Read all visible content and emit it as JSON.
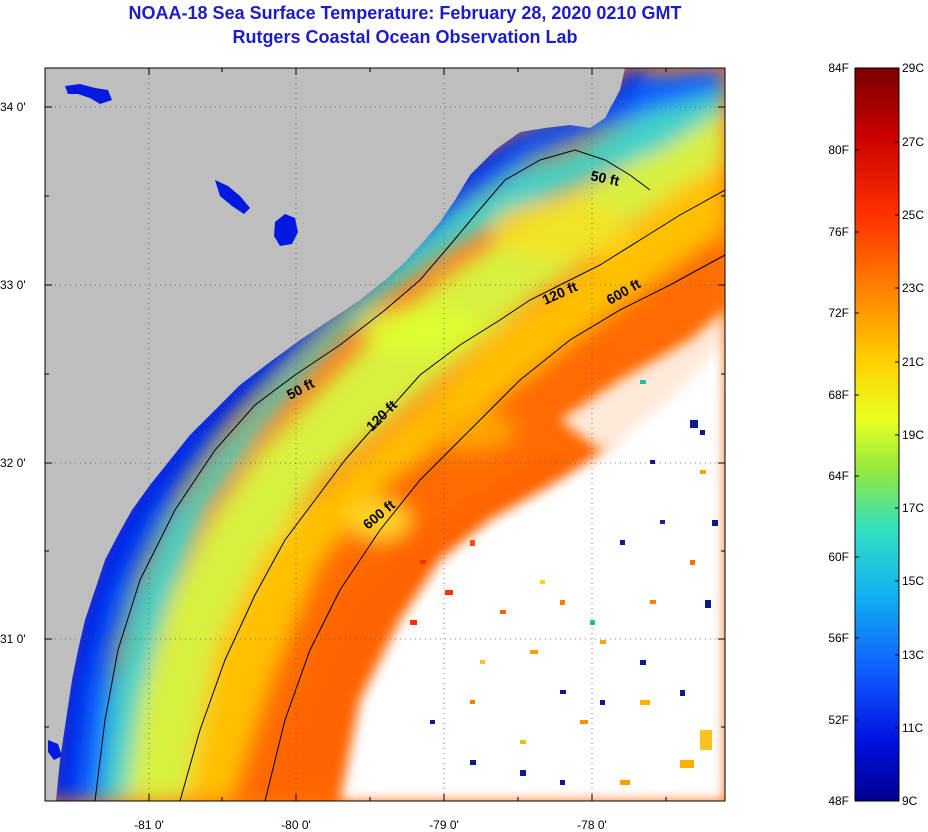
{
  "title": {
    "line1": "NOAA-18 Sea Surface Temperature:  February 28, 2020 0210 GMT",
    "line2": "Rutgers Coastal Ocean Observation Lab"
  },
  "map": {
    "lat_labels": [
      "34 0'",
      "33 0'",
      "32 0'",
      "31 0'"
    ],
    "lon_labels": [
      "-81 0'",
      "-80 0'",
      "-79 0'",
      "-78 0'"
    ],
    "isobaths": [
      {
        "label": "50 ft",
        "instance": "north"
      },
      {
        "label": "120 ft",
        "instance": "north"
      },
      {
        "label": "600 ft",
        "instance": "north"
      },
      {
        "label": "50 ft",
        "instance": "south"
      },
      {
        "label": "120 ft",
        "instance": "south"
      },
      {
        "label": "600 ft",
        "instance": "south"
      }
    ],
    "colors": {
      "land": "#bebebe",
      "cloud": "#ffffff",
      "title": "#1c1cc8"
    }
  },
  "colorbar": {
    "fahrenheit_labels": [
      "84F",
      "80F",
      "76F",
      "72F",
      "68F",
      "64F",
      "60F",
      "56F",
      "52F",
      "48F"
    ],
    "celsius_labels": [
      "29C",
      "27C",
      "25C",
      "23C",
      "21C",
      "19C",
      "17C",
      "15C",
      "13C",
      "11C",
      "9C"
    ],
    "gradient": [
      "#7a0000",
      "#c80000",
      "#ff3000",
      "#ff8000",
      "#ffd000",
      "#e8ff20",
      "#90e840",
      "#30e0c0",
      "#10b0f0",
      "#1060ff",
      "#0010e0",
      "#000090"
    ]
  }
}
